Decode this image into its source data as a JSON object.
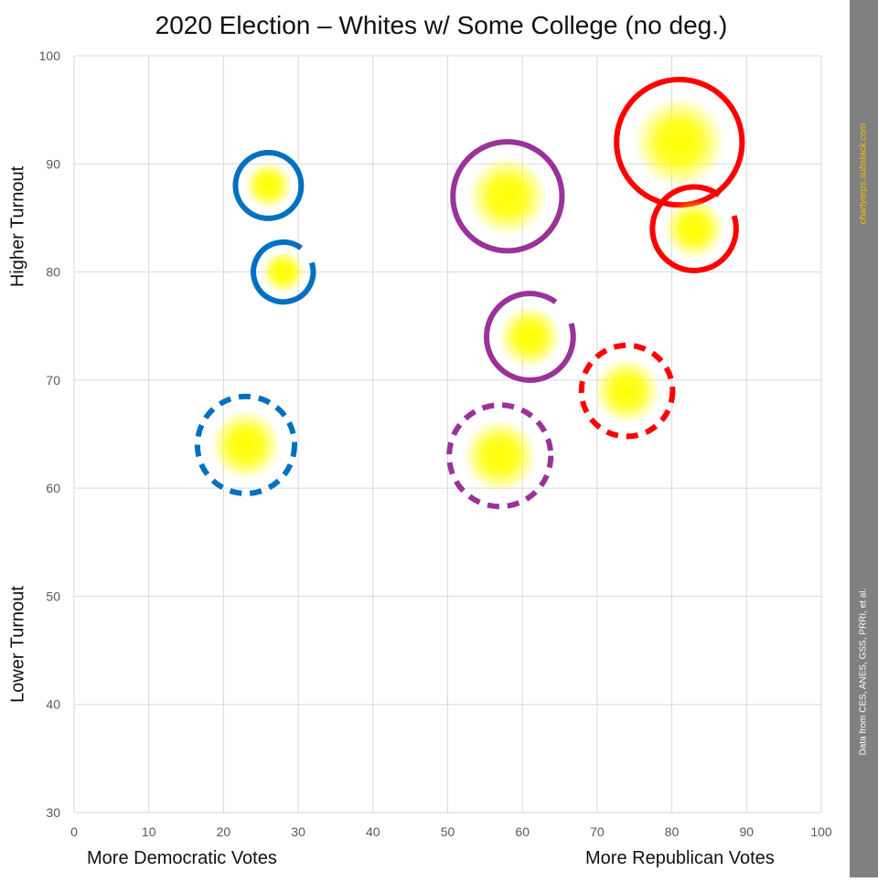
{
  "chart_data": {
    "type": "scatter",
    "title": "2020 Election – Whites w/ Some College (no deg.)",
    "xlabel_left": "More Democratic Votes",
    "xlabel_right": "More Republican Votes",
    "ylabel_top": "Higher Turnout",
    "ylabel_bottom": "Lower Turnout",
    "xlim": [
      0,
      100
    ],
    "ylim": [
      30,
      100
    ],
    "xticks": [
      0,
      10,
      20,
      30,
      40,
      50,
      60,
      70,
      80,
      90,
      100
    ],
    "yticks": [
      30,
      40,
      50,
      60,
      70,
      80,
      90,
      100
    ],
    "grid": true,
    "fill_color": "#ffff00",
    "colors": {
      "democratic": "#0070c0",
      "swing": "#993399",
      "republican": "#ff0000"
    },
    "bubbles": [
      {
        "x": 26,
        "y": 88,
        "r": 4.4,
        "color": "#0070c0",
        "style": "solid"
      },
      {
        "x": 28,
        "y": 80,
        "r": 4.0,
        "color": "#0070c0",
        "style": "open"
      },
      {
        "x": 23,
        "y": 64,
        "r": 6.5,
        "color": "#0070c0",
        "style": "dashed"
      },
      {
        "x": 58,
        "y": 87,
        "r": 7.3,
        "color": "#993399",
        "style": "solid"
      },
      {
        "x": 61,
        "y": 74,
        "r": 5.8,
        "color": "#993399",
        "style": "open"
      },
      {
        "x": 57,
        "y": 63,
        "r": 6.8,
        "color": "#993399",
        "style": "dashed"
      },
      {
        "x": 81,
        "y": 92,
        "r": 8.4,
        "color": "#ff0000",
        "style": "solid"
      },
      {
        "x": 83,
        "y": 84,
        "r": 5.6,
        "color": "#ff0000",
        "style": "open"
      },
      {
        "x": 74,
        "y": 69,
        "r": 6.1,
        "color": "#ff0000",
        "style": "dashed"
      }
    ]
  },
  "sidebar": {
    "credit": "chartyarps.substack.com",
    "source": "Data from CES, ANES, GSS, PRRI, et al."
  }
}
